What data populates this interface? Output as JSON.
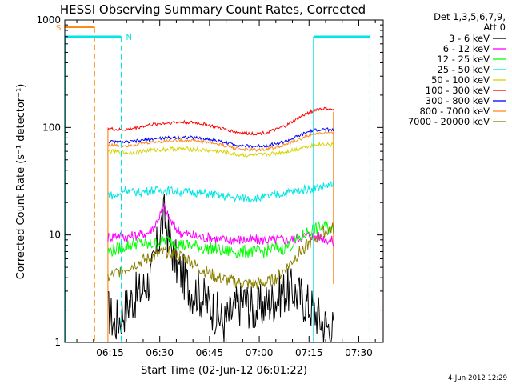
{
  "chart_data": {
    "type": "line",
    "title": "HESSI Observing Summary Count Rates, Corrected",
    "xlabel": "Start Time (02-Jun-12 06:01:22)",
    "ylabel": "Corrected Count Rate (s⁻¹ detector⁻¹)",
    "yscale": "log",
    "ylim": [
      1,
      1000
    ],
    "xlim_minutes": [
      0,
      96
    ],
    "x_ticks": [
      {
        "label": "06:15",
        "min": 13.63
      },
      {
        "label": "06:30",
        "min": 28.63
      },
      {
        "label": "06:45",
        "min": 43.63
      },
      {
        "label": "07:00",
        "min": 58.63
      },
      {
        "label": "07:15",
        "min": 73.63
      },
      {
        "label": "07:30",
        "min": 88.63
      }
    ],
    "y_ticks": [
      {
        "label": "1",
        "value": 1
      },
      {
        "label": "10",
        "value": 10
      },
      {
        "label": "100",
        "value": 100
      },
      {
        "label": "1000",
        "value": 1000
      }
    ],
    "legend": {
      "position": "top-right",
      "header": "Det 1,3,5,6,7,9,",
      "subheader": "Att 0"
    },
    "markers": [
      {
        "label": "S",
        "color": "#ff8c1a",
        "start": 0,
        "end": 9,
        "level": 860
      },
      {
        "label": "N",
        "color": "#00e5e5",
        "start": 0,
        "end": 17,
        "level": 700
      },
      {
        "label": "",
        "color": "#00e5e5",
        "start": 75,
        "end": 92,
        "level": 700
      }
    ],
    "data_window": [
      13,
      81
    ],
    "series": [
      {
        "name": "3 - 6 keV",
        "color": "#000000",
        "x": [
          13,
          15,
          17,
          20,
          23,
          26,
          28,
          29,
          30,
          32,
          34,
          36,
          38,
          40,
          42,
          45,
          48,
          51,
          54,
          57,
          60,
          63,
          66,
          69,
          72,
          75,
          78,
          81
        ],
        "y": [
          2,
          1.5,
          1.8,
          2.5,
          3,
          4,
          8,
          12,
          15,
          8,
          5,
          4,
          3,
          3,
          2.5,
          2,
          1.5,
          2,
          2.5,
          2,
          2.2,
          2.5,
          3,
          3,
          2.5,
          2,
          1.5,
          1.3
        ]
      },
      {
        "name": "6 - 12 keV",
        "color": "#ff00ff",
        "x": [
          13,
          16,
          19,
          22,
          25,
          27,
          29,
          30,
          31,
          33,
          35,
          38,
          41,
          44,
          47,
          50,
          53,
          56,
          59,
          62,
          65,
          68,
          71,
          74,
          77,
          80,
          81
        ],
        "y": [
          9.5,
          10,
          9.5,
          10,
          10.5,
          12,
          16,
          18,
          15,
          12,
          10.5,
          10,
          9.5,
          9.5,
          9,
          9,
          9,
          9,
          9,
          9,
          9,
          9,
          9.5,
          10,
          9.5,
          9,
          8.5
        ]
      },
      {
        "name": "12 - 25 keV",
        "color": "#00ff00",
        "x": [
          13,
          16,
          19,
          22,
          25,
          28,
          30,
          33,
          36,
          39,
          42,
          45,
          48,
          51,
          54,
          57,
          60,
          63,
          66,
          68,
          70,
          72,
          74,
          76,
          78,
          80,
          81
        ],
        "y": [
          7,
          7.5,
          8,
          8.5,
          8,
          8.5,
          9,
          8.5,
          8,
          8,
          7.5,
          7.5,
          7,
          7,
          7,
          7,
          7,
          7.5,
          7.5,
          8,
          9,
          10,
          11,
          11.5,
          12,
          11.5,
          11
        ]
      },
      {
        "name": "25 - 50 keV",
        "color": "#00e5e5",
        "x": [
          13,
          15,
          17,
          18,
          20,
          23,
          26,
          29,
          32,
          35,
          38,
          41,
          44,
          47,
          50,
          53,
          56,
          59,
          62,
          65,
          68,
          71,
          74,
          77,
          80,
          81
        ],
        "y": [
          24,
          23,
          24,
          27,
          25,
          25,
          26,
          26,
          26,
          25,
          25,
          24.5,
          24,
          23,
          22.5,
          22,
          22,
          22,
          23,
          24,
          25,
          26,
          27,
          28,
          29,
          29
        ]
      },
      {
        "name": "50 - 100 keV",
        "color": "#d4d400",
        "x": [
          13,
          16,
          19,
          22,
          25,
          28,
          31,
          34,
          37,
          40,
          43,
          46,
          49,
          52,
          55,
          58,
          61,
          64,
          67,
          70,
          73,
          76,
          79,
          81
        ],
        "y": [
          60,
          59,
          58,
          59,
          61,
          62,
          63,
          63,
          63,
          62,
          61,
          60,
          58,
          56,
          55,
          55,
          56,
          58,
          60,
          63,
          67,
          70,
          70,
          68
        ]
      },
      {
        "name": "100 - 300 keV",
        "color": "#ff0000",
        "x": [
          13,
          16,
          19,
          22,
          25,
          28,
          31,
          34,
          37,
          40,
          43,
          46,
          49,
          52,
          55,
          58,
          61,
          64,
          67,
          70,
          73,
          76,
          79,
          81
        ],
        "y": [
          98,
          95,
          96,
          100,
          105,
          108,
          110,
          112,
          112,
          110,
          106,
          100,
          95,
          90,
          88,
          88,
          90,
          96,
          105,
          120,
          135,
          148,
          150,
          145
        ]
      },
      {
        "name": "300 - 800 keV",
        "color": "#0000ff",
        "x": [
          13,
          16,
          19,
          22,
          25,
          28,
          31,
          34,
          37,
          40,
          43,
          46,
          49,
          52,
          55,
          58,
          61,
          64,
          67,
          70,
          73,
          76,
          79,
          81
        ],
        "y": [
          74,
          73,
          73,
          75,
          77,
          79,
          80,
          81,
          81,
          80,
          78,
          75,
          72,
          69,
          67,
          67,
          68,
          71,
          75,
          82,
          90,
          95,
          96,
          94
        ]
      },
      {
        "name": "800 - 7000 keV",
        "color": "#ff8c1a",
        "x": [
          13,
          16,
          19,
          22,
          25,
          28,
          31,
          34,
          37,
          40,
          43,
          46,
          49,
          52,
          55,
          58,
          61,
          64,
          67,
          70,
          73,
          76,
          79,
          81
        ],
        "y": [
          69,
          68,
          68,
          70,
          72,
          74,
          75,
          76,
          76,
          75,
          73,
          70,
          67,
          64,
          62,
          62,
          63,
          66,
          70,
          76,
          83,
          88,
          89,
          87
        ]
      },
      {
        "name": "7000 - 20000 keV",
        "color": "#8b8000",
        "x": [
          13,
          16,
          19,
          22,
          25,
          28,
          31,
          34,
          37,
          40,
          43,
          46,
          49,
          52,
          55,
          58,
          61,
          64,
          67,
          70,
          73,
          76,
          79,
          81
        ],
        "y": [
          4,
          4.5,
          5,
          5.5,
          6,
          6.5,
          7,
          6.5,
          6,
          5,
          4.5,
          4,
          3.8,
          3.6,
          3.5,
          3.5,
          3.6,
          4,
          5,
          6.5,
          8,
          9.5,
          11,
          11.5
        ]
      }
    ]
  },
  "footer": {
    "timestamp": "4-Jun-2012 12:29"
  }
}
